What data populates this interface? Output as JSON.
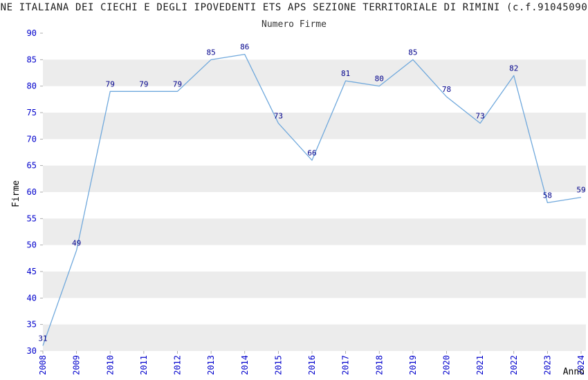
{
  "chart_data": {
    "type": "line",
    "title": "ONE ITALIANA DEI CIECHI E DEGLI IPOVEDENTI ETS APS SEZIONE TERRITORIALE DI RIMINI (c.f.910450904",
    "subtitle": "Numero Firme",
    "xlabel": "Anno",
    "ylabel": "Firme",
    "categories": [
      "2008",
      "2009",
      "2010",
      "2011",
      "2012",
      "2013",
      "2014",
      "2015",
      "2016",
      "2017",
      "2018",
      "2019",
      "2020",
      "2021",
      "2022",
      "2023",
      "2024"
    ],
    "values": [
      31,
      49,
      79,
      79,
      79,
      85,
      86,
      73,
      66,
      81,
      80,
      85,
      78,
      73,
      82,
      58,
      59
    ],
    "ylim": [
      30,
      90
    ],
    "ytick_step": 5,
    "grid": "alternating-horizontal-bands",
    "legend": "none",
    "data_labels": true
  },
  "colors": {
    "line": "#6fa8dc",
    "data_label": "#00008b",
    "tick_label": "#0000cc",
    "band": "#ececec",
    "tick_mark": "#999999",
    "title_text": "#1a1a1a",
    "axis_label_text": "#000000",
    "background": "#ffffff"
  }
}
